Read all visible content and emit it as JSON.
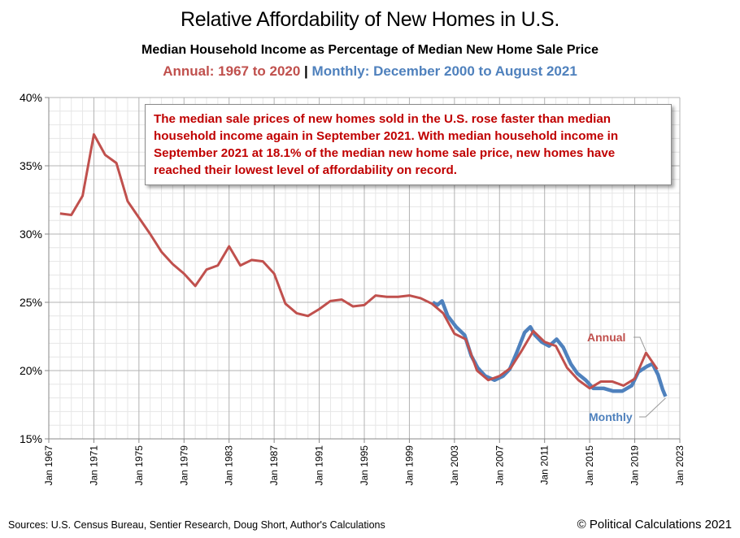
{
  "chart_data": {
    "type": "line",
    "title": "Relative Affordability of New Homes in U.S.",
    "subtitle": "Median Household Income as Percentage of Median New Home Sale Price",
    "subtitle_annual": "Annual: 1967 to 2020",
    "subtitle_separator": "|",
    "subtitle_monthly": "Monthly: December 2000 to August 2021",
    "xlim": [
      "1967-01",
      "2023-01"
    ],
    "ylim": [
      15,
      40
    ],
    "y_ticks": [
      "15%",
      "20%",
      "25%",
      "30%",
      "35%",
      "40%"
    ],
    "y_tick_values": [
      15,
      20,
      25,
      30,
      35,
      40
    ],
    "x_ticks": [
      "Jan 1967",
      "Jan 1971",
      "Jan 1975",
      "Jan 1979",
      "Jan 1983",
      "Jan 1987",
      "Jan 1991",
      "Jan 1995",
      "Jan 1999",
      "Jan 2003",
      "Jan 2007",
      "Jan 2011",
      "Jan 2015",
      "Jan 2019",
      "Jan 2023"
    ],
    "x_tick_years": [
      1967,
      1971,
      1975,
      1979,
      1983,
      1987,
      1991,
      1995,
      1999,
      2003,
      2007,
      2011,
      2015,
      2019,
      2023
    ],
    "grid": true,
    "series": [
      {
        "name": "Annual",
        "color": "#C0504D",
        "x": [
          1967,
          1968,
          1969,
          1970,
          1971,
          1972,
          1973,
          1974,
          1975,
          1976,
          1977,
          1978,
          1979,
          1980,
          1981,
          1982,
          1983,
          1984,
          1985,
          1986,
          1987,
          1988,
          1989,
          1990,
          1991,
          1992,
          1993,
          1994,
          1995,
          1996,
          1997,
          1998,
          1999,
          2000,
          2001,
          2002,
          2003,
          2004,
          2005,
          2006,
          2007,
          2008,
          2009,
          2010,
          2011,
          2012,
          2013,
          2014,
          2015,
          2016,
          2017,
          2018,
          2019,
          2020
        ],
        "values": [
          31.5,
          31.4,
          32.8,
          37.3,
          35.8,
          35.2,
          32.4,
          31.2,
          30.0,
          28.7,
          27.8,
          27.1,
          26.2,
          27.4,
          27.7,
          29.1,
          27.7,
          28.1,
          28.0,
          27.1,
          24.9,
          24.2,
          24.0,
          24.5,
          25.1,
          25.2,
          24.7,
          24.8,
          25.5,
          25.4,
          25.4,
          25.5,
          25.3,
          24.9,
          24.2,
          22.7,
          22.3,
          20.0,
          19.3,
          19.6,
          20.2,
          21.5,
          22.9,
          22.1,
          21.8,
          20.2,
          19.3,
          18.7,
          19.2,
          19.2,
          18.9,
          19.4,
          21.3,
          20.1
        ]
      },
      {
        "name": "Monthly",
        "color": "#4F81BD",
        "x": [
          "2000-12",
          "2001-05",
          "2001-10",
          "2002-04",
          "2003-01",
          "2003-10",
          "2004-05",
          "2004-12",
          "2005-08",
          "2006-06",
          "2007-03",
          "2007-10",
          "2008-06",
          "2009-02",
          "2009-08",
          "2010-01",
          "2010-08",
          "2011-04",
          "2011-12",
          "2012-07",
          "2013-03",
          "2013-10",
          "2014-07",
          "2015-03",
          "2016-02",
          "2016-12",
          "2017-10",
          "2018-08",
          "2019-03",
          "2019-12",
          "2020-06",
          "2020-12",
          "2021-05",
          "2021-08"
        ],
        "values": [
          25.0,
          24.8,
          25.1,
          24.0,
          23.2,
          22.6,
          21.1,
          20.2,
          19.6,
          19.3,
          19.6,
          20.1,
          21.4,
          22.8,
          23.2,
          22.6,
          22.1,
          21.8,
          22.3,
          21.7,
          20.5,
          19.8,
          19.3,
          18.7,
          18.7,
          18.5,
          18.5,
          18.9,
          19.9,
          20.3,
          20.5,
          19.7,
          18.6,
          18.1
        ]
      }
    ],
    "annotation": "The median sale prices of new homes sold in the U.S. rose faster than median household income again in September 2021. With median household income in September 2021 at 18.1% of the median new home sale price, new homes have reached their lowest level of affordability on record.",
    "legend_labels": {
      "annual": "Annual",
      "monthly": "Monthly"
    },
    "legend_placement": "inline-right"
  },
  "footer": {
    "sources": "Sources: U.S. Census Bureau, Sentier Research, Doug Short, Author's Calculations",
    "copyright": "© Political Calculations 2021"
  }
}
